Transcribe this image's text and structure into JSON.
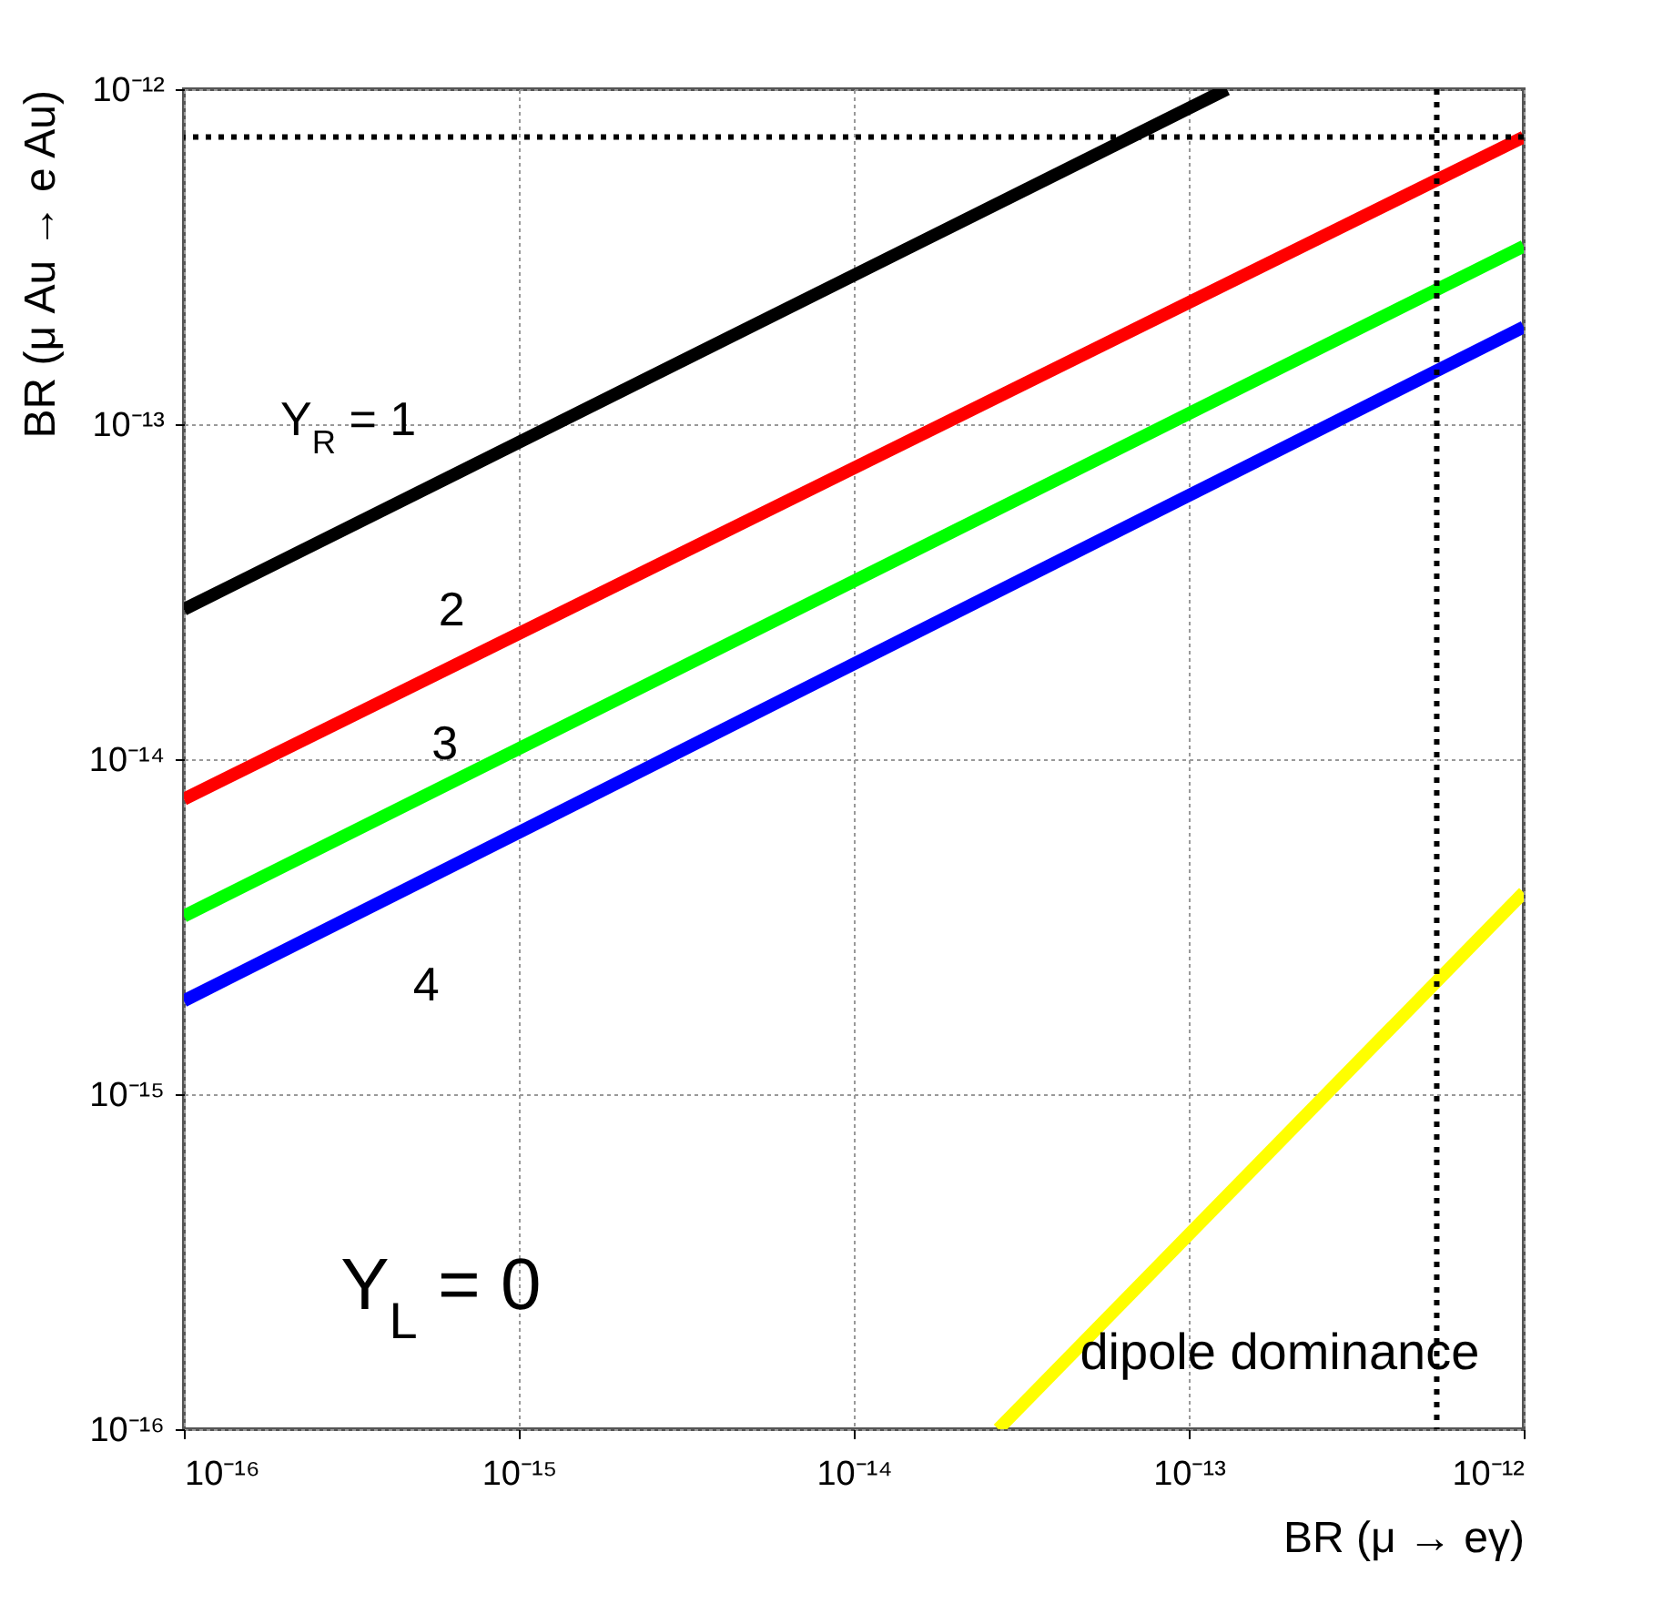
{
  "chart_data": {
    "type": "line",
    "xlabel": "BR (μ → eγ)",
    "ylabel": "BR (μ Au → e Au)",
    "log": "xy",
    "xlim": [
      1e-16,
      1e-12
    ],
    "ylim": [
      1e-16,
      1e-12
    ],
    "xticks": [
      {
        "value": 1e-16,
        "label": "10⁻¹⁶"
      },
      {
        "value": 1e-15,
        "label": "10⁻¹⁵"
      },
      {
        "value": 1e-14,
        "label": "10⁻¹⁴"
      },
      {
        "value": 1e-13,
        "label": "10⁻¹³"
      },
      {
        "value": 1e-12,
        "label": "10⁻¹²"
      }
    ],
    "yticks": [
      {
        "value": 1e-16,
        "label": "10⁻¹⁶"
      },
      {
        "value": 1e-15,
        "label": "10⁻¹⁵"
      },
      {
        "value": 1e-14,
        "label": "10⁻¹⁴"
      },
      {
        "value": 1e-13,
        "label": "10⁻¹³"
      },
      {
        "value": 1e-12,
        "label": "10⁻¹²"
      }
    ],
    "grid": true,
    "line_style": "solid",
    "marker": "none",
    "series": [
      {
        "color": "#000000",
        "x": [
          1e-16,
          1.3e-13
        ],
        "values": [
          2.8e-14,
          1e-12
        ]
      },
      {
        "color": "#ff0000",
        "x": [
          1e-16,
          1e-12
        ],
        "values": [
          7.6e-15,
          7.2e-13
        ]
      },
      {
        "color": "#00ff00",
        "x": [
          1e-16,
          1e-12
        ],
        "values": [
          3.4e-15,
          3.4e-13
        ]
      },
      {
        "color": "#0000ff",
        "x": [
          1e-16,
          1e-12
        ],
        "values": [
          1.9e-15,
          1.95e-13
        ]
      },
      {
        "color": "#ffff00",
        "x": [
          2.7e-14,
          1e-12
        ],
        "values": [
          1e-16,
          4e-15
        ]
      }
    ],
    "ref_lines": [
      {
        "axis": "y",
        "value": 7.2e-13,
        "color": "#000000",
        "line_style": "dotted"
      },
      {
        "axis": "x",
        "value": 5.5e-13,
        "color": "#000000",
        "line_style": "dotted"
      }
    ],
    "annotations": [
      "Y$_{R}$ = 1",
      "2",
      "3",
      "4",
      "Y$_{L}$ = 0",
      "dipole dominance"
    ]
  }
}
